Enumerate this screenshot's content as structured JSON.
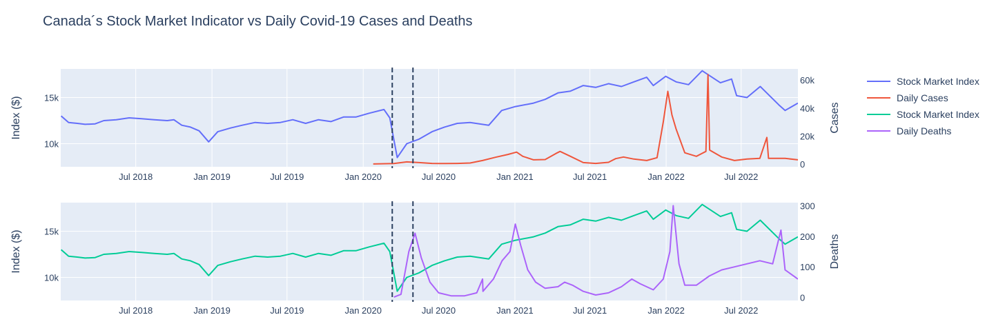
{
  "title": "Canada´s Stock Market Indicator vs Daily Covid-19 Cases and Deaths",
  "colors": {
    "stock_top": "#636efa",
    "cases": "#ef553b",
    "stock_bottom": "#00cc96",
    "deaths": "#ab63fa",
    "plot_bg": "#e5ecf6",
    "grid": "#ffffff",
    "vline": "#2a3f5f"
  },
  "legend": {
    "items": [
      {
        "label": "Stock Market Index",
        "color": "#636efa"
      },
      {
        "label": "Daily Cases",
        "color": "#ef553b"
      },
      {
        "label": "Stock Market Index",
        "color": "#00cc96"
      },
      {
        "label": "Daily Deaths",
        "color": "#ab63fa"
      }
    ]
  },
  "chart_data": [
    {
      "type": "line",
      "panel": "top",
      "ylabel_left": "Index ($)",
      "ylabel_right": "Cases",
      "x_tick_labels": [
        "Jul 2018",
        "Jan 2019",
        "Jul 2019",
        "Jan 2020",
        "Jul 2020",
        "Jan 2021",
        "Jul 2021",
        "Jan 2022",
        "Jul 2022"
      ],
      "y_left_ticks": [
        "10k",
        "15k"
      ],
      "y_right_ticks": [
        "0",
        "20k",
        "40k",
        "60k"
      ],
      "y_left_range": [
        7500,
        18100
      ],
      "y_right_range": [
        -2000,
        68000
      ],
      "x_range": [
        "2018-01-01",
        "2022-11-15"
      ],
      "vertical_lines": [
        "2020-03-11",
        "2020-04-30"
      ],
      "series": [
        {
          "name": "Stock Market Index",
          "axis": "left",
          "points": [
            [
              "2018-01-02",
              13000
            ],
            [
              "2018-01-20",
              12300
            ],
            [
              "2018-02-10",
              12200
            ],
            [
              "2018-03-01",
              12100
            ],
            [
              "2018-03-25",
              12150
            ],
            [
              "2018-04-15",
              12500
            ],
            [
              "2018-05-15",
              12600
            ],
            [
              "2018-06-15",
              12800
            ],
            [
              "2018-07-15",
              12700
            ],
            [
              "2018-08-15",
              12600
            ],
            [
              "2018-09-15",
              12500
            ],
            [
              "2018-10-01",
              12600
            ],
            [
              "2018-10-20",
              12000
            ],
            [
              "2018-11-10",
              11800
            ],
            [
              "2018-12-01",
              11400
            ],
            [
              "2018-12-24",
              10200
            ],
            [
              "2019-01-15",
              11300
            ],
            [
              "2019-02-15",
              11700
            ],
            [
              "2019-03-15",
              12000
            ],
            [
              "2019-04-15",
              12300
            ],
            [
              "2019-05-15",
              12200
            ],
            [
              "2019-06-15",
              12300
            ],
            [
              "2019-07-15",
              12600
            ],
            [
              "2019-08-15",
              12200
            ],
            [
              "2019-09-15",
              12600
            ],
            [
              "2019-10-15",
              12400
            ],
            [
              "2019-11-15",
              12900
            ],
            [
              "2019-12-15",
              12900
            ],
            [
              "2020-01-15",
              13300
            ],
            [
              "2020-02-20",
              13700
            ],
            [
              "2020-03-05",
              12800
            ],
            [
              "2020-03-23",
              8500
            ],
            [
              "2020-04-15",
              10000
            ],
            [
              "2020-05-15",
              10500
            ],
            [
              "2020-06-15",
              11300
            ],
            [
              "2020-07-15",
              11800
            ],
            [
              "2020-08-15",
              12200
            ],
            [
              "2020-09-15",
              12300
            ],
            [
              "2020-10-30",
              12000
            ],
            [
              "2020-11-30",
              13600
            ],
            [
              "2020-12-31",
              14000
            ],
            [
              "2021-02-15",
              14400
            ],
            [
              "2021-03-15",
              14800
            ],
            [
              "2021-04-15",
              15500
            ],
            [
              "2021-05-15",
              15700
            ],
            [
              "2021-06-15",
              16300
            ],
            [
              "2021-07-15",
              16100
            ],
            [
              "2021-08-15",
              16500
            ],
            [
              "2021-09-15",
              16200
            ],
            [
              "2021-10-15",
              16700
            ],
            [
              "2021-11-15",
              17200
            ],
            [
              "2021-12-01",
              16300
            ],
            [
              "2021-12-31",
              17300
            ],
            [
              "2022-01-25",
              16700
            ],
            [
              "2022-02-24",
              16400
            ],
            [
              "2022-03-29",
              17900
            ],
            [
              "2022-05-12",
              16600
            ],
            [
              "2022-06-08",
              17000
            ],
            [
              "2022-06-20",
              15200
            ],
            [
              "2022-07-15",
              15000
            ],
            [
              "2022-08-16",
              16200
            ],
            [
              "2022-09-30",
              14200
            ],
            [
              "2022-10-15",
              13600
            ],
            [
              "2022-11-15",
              14400
            ]
          ]
        },
        {
          "name": "Daily Cases",
          "axis": "right",
          "points": [
            [
              "2020-01-25",
              0
            ],
            [
              "2020-03-15",
              300
            ],
            [
              "2020-04-15",
              1500
            ],
            [
              "2020-05-15",
              1000
            ],
            [
              "2020-06-15",
              400
            ],
            [
              "2020-07-15",
              300
            ],
            [
              "2020-08-15",
              400
            ],
            [
              "2020-09-15",
              700
            ],
            [
              "2020-10-15",
              2500
            ],
            [
              "2020-11-15",
              4800
            ],
            [
              "2020-12-15",
              6800
            ],
            [
              "2021-01-05",
              8500
            ],
            [
              "2021-01-20",
              5500
            ],
            [
              "2021-02-15",
              3000
            ],
            [
              "2021-03-15",
              3200
            ],
            [
              "2021-04-10",
              7500
            ],
            [
              "2021-04-20",
              9000
            ],
            [
              "2021-05-15",
              5500
            ],
            [
              "2021-06-15",
              1000
            ],
            [
              "2021-07-15",
              400
            ],
            [
              "2021-08-15",
              1200
            ],
            [
              "2021-09-01",
              3800
            ],
            [
              "2021-09-20",
              5000
            ],
            [
              "2021-10-15",
              3500
            ],
            [
              "2021-11-15",
              2500
            ],
            [
              "2021-12-10",
              4500
            ],
            [
              "2021-12-25",
              30000
            ],
            [
              "2022-01-05",
              52000
            ],
            [
              "2022-01-15",
              35000
            ],
            [
              "2022-01-25",
              25000
            ],
            [
              "2022-02-15",
              8000
            ],
            [
              "2022-03-15",
              5500
            ],
            [
              "2022-04-07",
              9000
            ],
            [
              "2022-04-12",
              64000
            ],
            [
              "2022-04-16",
              10000
            ],
            [
              "2022-05-15",
              5000
            ],
            [
              "2022-06-15",
              2500
            ],
            [
              "2022-07-15",
              3500
            ],
            [
              "2022-08-15",
              4000
            ],
            [
              "2022-09-01",
              19000
            ],
            [
              "2022-09-05",
              4000
            ],
            [
              "2022-10-15",
              4000
            ],
            [
              "2022-11-15",
              3000
            ]
          ]
        }
      ]
    },
    {
      "type": "line",
      "panel": "bottom",
      "ylabel_left": "Index ($)",
      "ylabel_right": "Deaths",
      "x_tick_labels": [
        "Jul 2018",
        "Jan 2019",
        "Jul 2019",
        "Jan 2020",
        "Jul 2020",
        "Jan 2021",
        "Jul 2021",
        "Jan 2022",
        "Jul 2022"
      ],
      "y_left_ticks": [
        "10k",
        "15k"
      ],
      "y_right_ticks": [
        "0",
        "100",
        "200",
        "300"
      ],
      "y_left_range": [
        7500,
        18100
      ],
      "y_right_range": [
        -10,
        310
      ],
      "x_range": [
        "2018-01-01",
        "2022-11-15"
      ],
      "vertical_lines": [
        "2020-03-11",
        "2020-04-30"
      ],
      "series": [
        {
          "name": "Stock Market Index",
          "axis": "left",
          "points": [
            [
              "2018-01-02",
              13000
            ],
            [
              "2018-01-20",
              12300
            ],
            [
              "2018-02-10",
              12200
            ],
            [
              "2018-03-01",
              12100
            ],
            [
              "2018-03-25",
              12150
            ],
            [
              "2018-04-15",
              12500
            ],
            [
              "2018-05-15",
              12600
            ],
            [
              "2018-06-15",
              12800
            ],
            [
              "2018-07-15",
              12700
            ],
            [
              "2018-08-15",
              12600
            ],
            [
              "2018-09-15",
              12500
            ],
            [
              "2018-10-01",
              12600
            ],
            [
              "2018-10-20",
              12000
            ],
            [
              "2018-11-10",
              11800
            ],
            [
              "2018-12-01",
              11400
            ],
            [
              "2018-12-24",
              10200
            ],
            [
              "2019-01-15",
              11300
            ],
            [
              "2019-02-15",
              11700
            ],
            [
              "2019-03-15",
              12000
            ],
            [
              "2019-04-15",
              12300
            ],
            [
              "2019-05-15",
              12200
            ],
            [
              "2019-06-15",
              12300
            ],
            [
              "2019-07-15",
              12600
            ],
            [
              "2019-08-15",
              12200
            ],
            [
              "2019-09-15",
              12600
            ],
            [
              "2019-10-15",
              12400
            ],
            [
              "2019-11-15",
              12900
            ],
            [
              "2019-12-15",
              12900
            ],
            [
              "2020-01-15",
              13300
            ],
            [
              "2020-02-20",
              13700
            ],
            [
              "2020-03-05",
              12800
            ],
            [
              "2020-03-23",
              8500
            ],
            [
              "2020-04-15",
              10000
            ],
            [
              "2020-05-15",
              10500
            ],
            [
              "2020-06-15",
              11300
            ],
            [
              "2020-07-15",
              11800
            ],
            [
              "2020-08-15",
              12200
            ],
            [
              "2020-09-15",
              12300
            ],
            [
              "2020-10-30",
              12000
            ],
            [
              "2020-11-30",
              13600
            ],
            [
              "2020-12-31",
              14000
            ],
            [
              "2021-02-15",
              14400
            ],
            [
              "2021-03-15",
              14800
            ],
            [
              "2021-04-15",
              15500
            ],
            [
              "2021-05-15",
              15700
            ],
            [
              "2021-06-15",
              16300
            ],
            [
              "2021-07-15",
              16100
            ],
            [
              "2021-08-15",
              16500
            ],
            [
              "2021-09-15",
              16200
            ],
            [
              "2021-10-15",
              16700
            ],
            [
              "2021-11-15",
              17200
            ],
            [
              "2021-12-01",
              16300
            ],
            [
              "2021-12-31",
              17300
            ],
            [
              "2022-01-25",
              16700
            ],
            [
              "2022-02-24",
              16400
            ],
            [
              "2022-03-29",
              17900
            ],
            [
              "2022-05-12",
              16600
            ],
            [
              "2022-06-08",
              17000
            ],
            [
              "2022-06-20",
              15200
            ],
            [
              "2022-07-15",
              15000
            ],
            [
              "2022-08-16",
              16200
            ],
            [
              "2022-09-30",
              14200
            ],
            [
              "2022-10-15",
              13600
            ],
            [
              "2022-11-15",
              14400
            ]
          ]
        },
        {
          "name": "Daily Deaths",
          "axis": "right",
          "points": [
            [
              "2020-03-15",
              1
            ],
            [
              "2020-04-01",
              10
            ],
            [
              "2020-04-20",
              150
            ],
            [
              "2020-05-05",
              210
            ],
            [
              "2020-05-20",
              130
            ],
            [
              "2020-06-10",
              50
            ],
            [
              "2020-07-01",
              15
            ],
            [
              "2020-08-01",
              5
            ],
            [
              "2020-09-01",
              5
            ],
            [
              "2020-10-01",
              15
            ],
            [
              "2020-10-15",
              60
            ],
            [
              "2020-10-16",
              20
            ],
            [
              "2020-11-10",
              60
            ],
            [
              "2020-12-01",
              120
            ],
            [
              "2020-12-20",
              150
            ],
            [
              "2021-01-02",
              240
            ],
            [
              "2021-01-15",
              170
            ],
            [
              "2021-02-01",
              90
            ],
            [
              "2021-02-20",
              50
            ],
            [
              "2021-03-15",
              30
            ],
            [
              "2021-04-15",
              35
            ],
            [
              "2021-05-01",
              50
            ],
            [
              "2021-05-20",
              40
            ],
            [
              "2021-06-15",
              20
            ],
            [
              "2021-07-15",
              8
            ],
            [
              "2021-08-15",
              15
            ],
            [
              "2021-09-15",
              35
            ],
            [
              "2021-10-10",
              60
            ],
            [
              "2021-10-30",
              45
            ],
            [
              "2021-12-01",
              25
            ],
            [
              "2021-12-25",
              60
            ],
            [
              "2022-01-10",
              150
            ],
            [
              "2022-01-18",
              300
            ],
            [
              "2022-02-01",
              110
            ],
            [
              "2022-02-15",
              40
            ],
            [
              "2022-03-15",
              40
            ],
            [
              "2022-04-15",
              70
            ],
            [
              "2022-05-15",
              90
            ],
            [
              "2022-06-15",
              100
            ],
            [
              "2022-07-15",
              110
            ],
            [
              "2022-08-15",
              120
            ],
            [
              "2022-09-15",
              110
            ],
            [
              "2022-10-05",
              220
            ],
            [
              "2022-10-15",
              90
            ],
            [
              "2022-11-15",
              60
            ]
          ]
        }
      ]
    }
  ]
}
